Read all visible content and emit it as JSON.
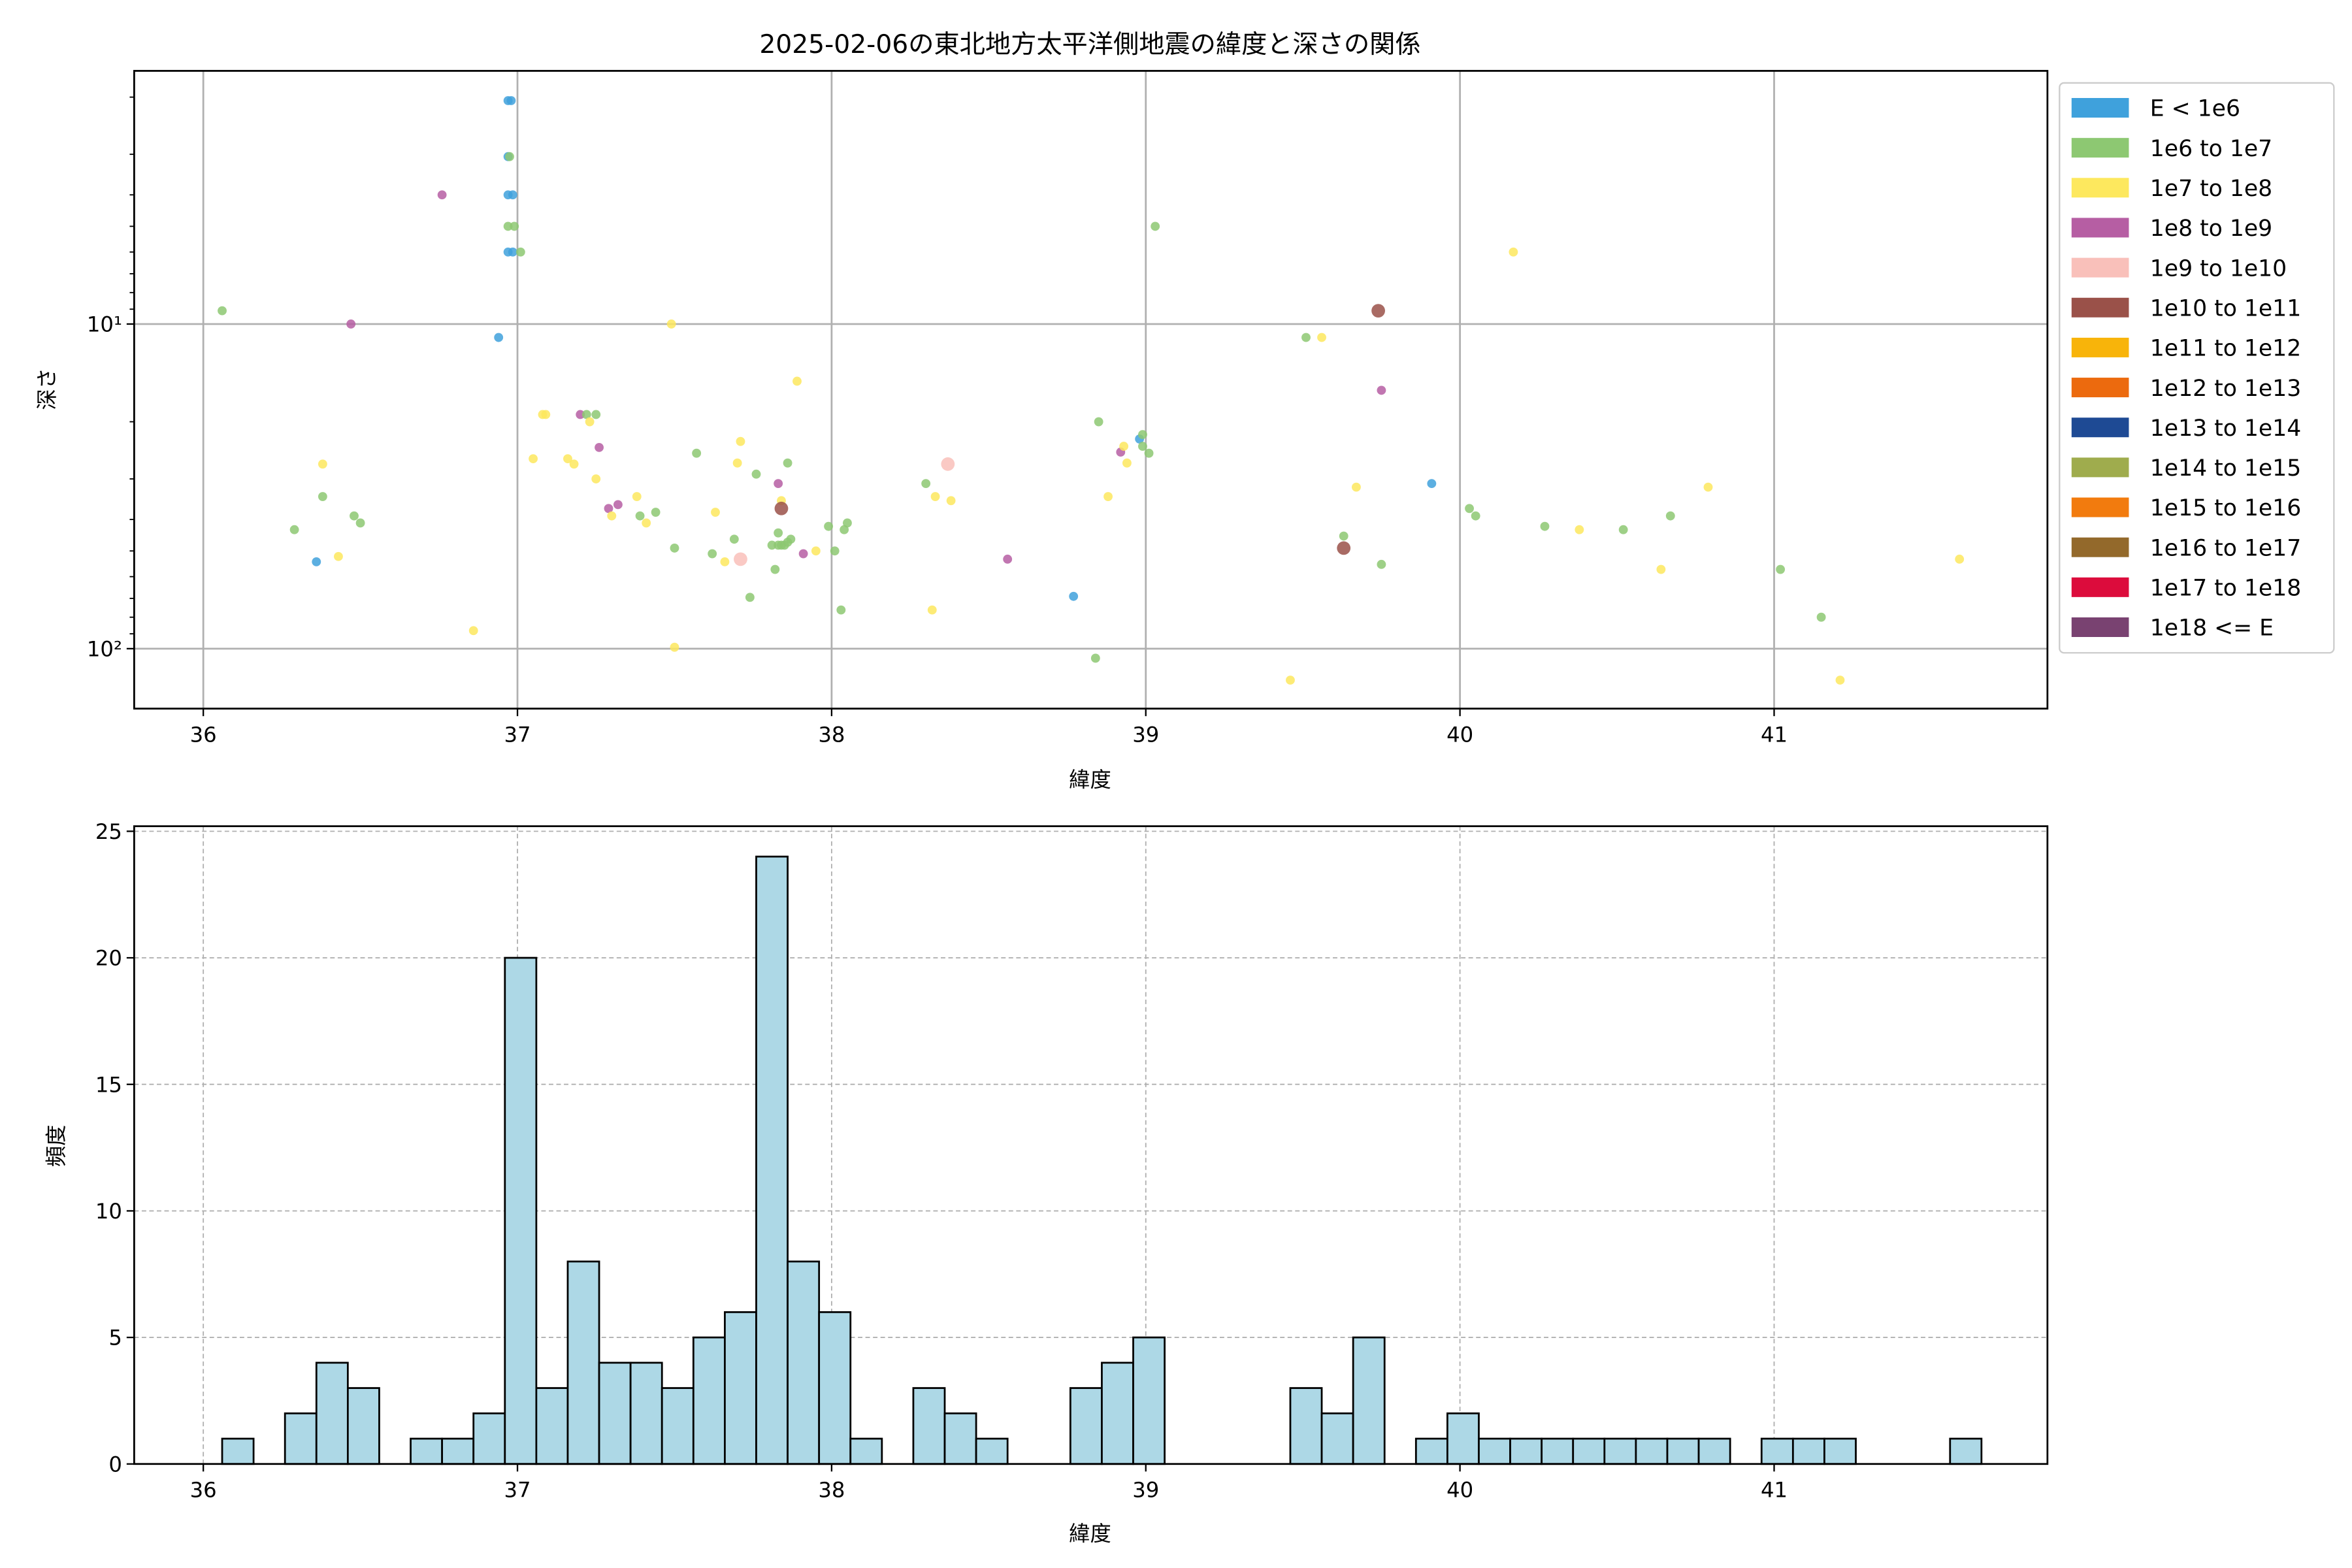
{
  "chart_data": [
    {
      "type": "scatter",
      "title": "2025-02-06の東北地方太平洋側地震の緯度と深さの関係",
      "xlabel": "緯度",
      "ylabel": "深さ",
      "xlim": [
        35.78,
        41.87
      ],
      "ylim": [
        1.66,
        153
      ],
      "y_scale": "log",
      "y_inverted": true,
      "grid": true,
      "xticks": [
        36,
        37,
        38,
        39,
        40,
        41
      ],
      "yticks": [
        {
          "value": 10,
          "label": "10¹"
        },
        {
          "value": 100,
          "label": "10²"
        }
      ],
      "legend_position": "outside-right",
      "legend": [
        {
          "label": "E < 1e6",
          "color": "#3fa1dc"
        },
        {
          "label": "1e6 to 1e7",
          "color": "#8dc872"
        },
        {
          "label": "1e7 to 1e8",
          "color": "#fde85e"
        },
        {
          "label": "1e8 to 1e9",
          "color": "#b65ea3"
        },
        {
          "label": "1e9 to 1e10",
          "color": "#f9c0ba"
        },
        {
          "label": "1e10 to 1e11",
          "color": "#9a5149"
        },
        {
          "label": "1e11 to 1e12",
          "color": "#f8b40a"
        },
        {
          "label": "1e12 to 1e13",
          "color": "#ec6a0e"
        },
        {
          "label": "1e13 to 1e14",
          "color": "#1e4a94"
        },
        {
          "label": "1e14 to 1e15",
          "color": "#9fac4d"
        },
        {
          "label": "1e15 to 1e16",
          "color": "#f27b0e"
        },
        {
          "label": "1e16 to 1e17",
          "color": "#93692b"
        },
        {
          "label": "1e17 to 1e18",
          "color": "#dc0c3c"
        },
        {
          "label": "1e18 <= E",
          "color": "#794271"
        }
      ],
      "points": [
        [
          36.06,
          9.1,
          1
        ],
        [
          36.47,
          10,
          3
        ],
        [
          36.29,
          43,
          1
        ],
        [
          36.38,
          34,
          1
        ],
        [
          36.38,
          27,
          2
        ],
        [
          36.36,
          54,
          0
        ],
        [
          36.43,
          52,
          2
        ],
        [
          36.48,
          39,
          1
        ],
        [
          36.5,
          41,
          1
        ],
        [
          36.76,
          4.0,
          3
        ],
        [
          36.86,
          88,
          2
        ],
        [
          36.94,
          11,
          0
        ],
        [
          36.97,
          2.05,
          0
        ],
        [
          36.98,
          2.05,
          0
        ],
        [
          36.97,
          3.05,
          0
        ],
        [
          36.975,
          3.05,
          1
        ],
        [
          36.97,
          4.0,
          0
        ],
        [
          36.985,
          4.0,
          0
        ],
        [
          36.97,
          5.0,
          1
        ],
        [
          36.99,
          5.0,
          1
        ],
        [
          36.97,
          6.0,
          0
        ],
        [
          36.985,
          6.0,
          0
        ],
        [
          37.01,
          6.0,
          1
        ],
        [
          37.05,
          26,
          2
        ],
        [
          37.08,
          19,
          2
        ],
        [
          37.09,
          19,
          2
        ],
        [
          37.16,
          26,
          2
        ],
        [
          37.18,
          27,
          2
        ],
        [
          37.2,
          19,
          3
        ],
        [
          37.22,
          19,
          1
        ],
        [
          37.25,
          19,
          1
        ],
        [
          37.23,
          20,
          2
        ],
        [
          37.25,
          30,
          2
        ],
        [
          37.26,
          24,
          3
        ],
        [
          37.29,
          37,
          3
        ],
        [
          37.3,
          39,
          2
        ],
        [
          37.32,
          36,
          3
        ],
        [
          37.38,
          34,
          2
        ],
        [
          37.39,
          39,
          1
        ],
        [
          37.41,
          41,
          2
        ],
        [
          37.44,
          38,
          1
        ],
        [
          37.49,
          10,
          2
        ],
        [
          37.5,
          49,
          1
        ],
        [
          37.5,
          99,
          2
        ],
        [
          37.57,
          25,
          1
        ],
        [
          37.62,
          51,
          1
        ],
        [
          37.63,
          38,
          2
        ],
        [
          37.66,
          54,
          2
        ],
        [
          37.69,
          46,
          1
        ],
        [
          37.7,
          26.8,
          2
        ],
        [
          37.71,
          23,
          2
        ],
        [
          37.71,
          53,
          4
        ],
        [
          37.74,
          69.5,
          1
        ],
        [
          37.76,
          29,
          1
        ],
        [
          37.82,
          57,
          1
        ],
        [
          37.83,
          44,
          1
        ],
        [
          37.83,
          31,
          3
        ],
        [
          37.84,
          35,
          2
        ],
        [
          37.84,
          37,
          5
        ],
        [
          37.81,
          48,
          1
        ],
        [
          37.83,
          48,
          1
        ],
        [
          37.84,
          48,
          1
        ],
        [
          37.85,
          48,
          1
        ],
        [
          37.86,
          47,
          1
        ],
        [
          37.87,
          46,
          1
        ],
        [
          37.86,
          26.8,
          1
        ],
        [
          37.91,
          51,
          3
        ],
        [
          37.89,
          15,
          2
        ],
        [
          37.95,
          50,
          2
        ],
        [
          37.99,
          42,
          1
        ],
        [
          38.01,
          50,
          1
        ],
        [
          38.03,
          76,
          1
        ],
        [
          38.04,
          43,
          1
        ],
        [
          38.05,
          41,
          1
        ],
        [
          38.3,
          31,
          1
        ],
        [
          38.32,
          76,
          2
        ],
        [
          38.33,
          34,
          2
        ],
        [
          38.37,
          27,
          4
        ],
        [
          38.38,
          35,
          2
        ],
        [
          38.56,
          53,
          3
        ],
        [
          38.77,
          69,
          0
        ],
        [
          38.84,
          107,
          1
        ],
        [
          38.85,
          20,
          1
        ],
        [
          38.88,
          34,
          2
        ],
        [
          38.92,
          24.8,
          3
        ],
        [
          38.94,
          26.8,
          2
        ],
        [
          38.93,
          23.8,
          2
        ],
        [
          38.98,
          22.6,
          0
        ],
        [
          38.99,
          21.9,
          1
        ],
        [
          38.99,
          23.8,
          1
        ],
        [
          39.01,
          25,
          1
        ],
        [
          39.03,
          5.0,
          1
        ],
        [
          39.46,
          125,
          2
        ],
        [
          39.51,
          11,
          1
        ],
        [
          39.56,
          11,
          2
        ],
        [
          39.63,
          49,
          5
        ],
        [
          39.63,
          45,
          1
        ],
        [
          39.67,
          31.8,
          2
        ],
        [
          39.74,
          9.1,
          5
        ],
        [
          39.75,
          16,
          3
        ],
        [
          39.75,
          55,
          1
        ],
        [
          39.91,
          31,
          0
        ],
        [
          40.03,
          37,
          1
        ],
        [
          40.05,
          39,
          1
        ],
        [
          40.17,
          6.0,
          2
        ],
        [
          40.27,
          42,
          1
        ],
        [
          40.38,
          43,
          2
        ],
        [
          40.52,
          43,
          1
        ],
        [
          40.64,
          57,
          2
        ],
        [
          40.67,
          39,
          1
        ],
        [
          40.79,
          31.8,
          2
        ],
        [
          41.02,
          57,
          1
        ],
        [
          41.15,
          80,
          1
        ],
        [
          41.21,
          125,
          2
        ],
        [
          41.59,
          53,
          2
        ]
      ]
    },
    {
      "type": "bar",
      "subtype": "histogram",
      "xlabel": "緯度",
      "ylabel": "頻度",
      "xlim": [
        35.78,
        41.87
      ],
      "ylim": [
        0,
        25.2
      ],
      "grid": true,
      "xticks": [
        36,
        37,
        38,
        39,
        40,
        41
      ],
      "yticks": [
        0,
        5,
        10,
        15,
        20,
        25
      ],
      "bin_start": 36.06,
      "bin_width": 0.1,
      "bar_color": "#add8e6",
      "counts": [
        1,
        0,
        2,
        4,
        3,
        0,
        1,
        1,
        2,
        20,
        3,
        8,
        4,
        4,
        3,
        5,
        6,
        24,
        8,
        6,
        1,
        0,
        3,
        2,
        1,
        0,
        0,
        3,
        4,
        5,
        0,
        0,
        0,
        0,
        3,
        2,
        5,
        0,
        1,
        2,
        1,
        1,
        1,
        1,
        1,
        1,
        1,
        1,
        0,
        1,
        1,
        1,
        0,
        0,
        0,
        1
      ]
    }
  ]
}
